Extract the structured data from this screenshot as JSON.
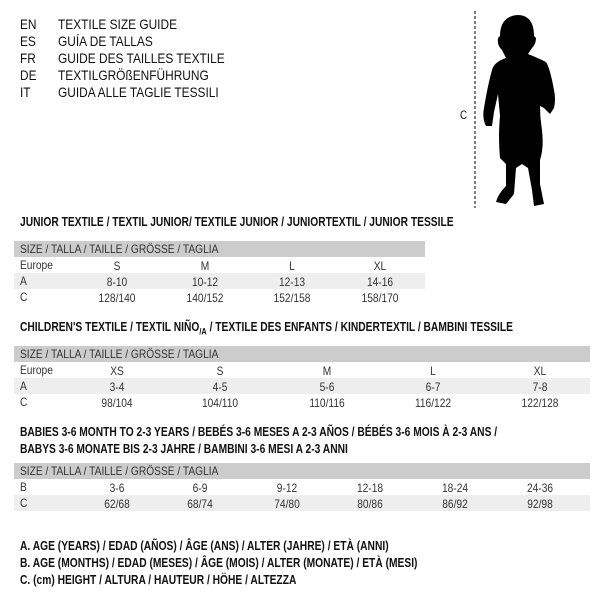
{
  "languages": [
    {
      "code": "EN",
      "title": "TEXTILE SIZE GUIDE"
    },
    {
      "code": "ES",
      "title": "GUÍA DE TALLAS"
    },
    {
      "code": "FR",
      "title": "GUIDE DES TAILLES TEXTILE"
    },
    {
      "code": "DE",
      "title": "TEXTILGRÖßENFÜHRUNG"
    },
    {
      "code": "IT",
      "title": "GUIDA ALLE TAGLIE TESSILI"
    }
  ],
  "figure": {
    "label": "C",
    "icon": "child-silhouette"
  },
  "size_header": "SIZE / TALLA / TAILLE / GRÖSSE / TAGLIA",
  "junior": {
    "title": "JUNIOR TEXTILE / TEXTIL JUNIOR/ TEXTILE JUNIOR / JUNIORTEXTIL / JUNIOR TESSILE",
    "rows": [
      {
        "label": "Europe",
        "values": [
          "S",
          "M",
          "L",
          "XL"
        ]
      },
      {
        "label": "A",
        "values": [
          "8-10",
          "10-12",
          "12-13",
          "14-16"
        ]
      },
      {
        "label": "C",
        "values": [
          "128/140",
          "140/152",
          "152/158",
          "158/170"
        ]
      }
    ]
  },
  "children": {
    "title": "CHILDREN'S TEXTILE / TEXTIL NIÑO",
    "title_sub": "/A",
    "title_rest": " / TEXTILE DES ENFANTS / KINDERTEXTIL / BAMBINI TESSILE",
    "rows": [
      {
        "label": "Europe",
        "values": [
          "XS",
          "S",
          "M",
          "L",
          "XL"
        ]
      },
      {
        "label": "A",
        "values": [
          "3-4",
          "4-5",
          "5-6",
          "6-7",
          "7-8"
        ]
      },
      {
        "label": "C",
        "values": [
          "98/104",
          "104/110",
          "110/116",
          "116/122",
          "122/128"
        ]
      }
    ]
  },
  "babies": {
    "title_line1": "BABIES 3-6 MONTH TO 2-3 YEARS / BEBÉS 3-6 MESES A 2-3 AÑOS / BÉBÉS 3-6 MOIS À 2-3 ANS /",
    "title_line2": "BABYS 3-6 MONATE BIS 2-3 JAHRE / BAMBINI 3-6 MESI A 2-3 ANNI",
    "rows": [
      {
        "label": "B",
        "values": [
          "3-6",
          "6-9",
          "9-12",
          "12-18",
          "18-24",
          "24-36"
        ]
      },
      {
        "label": "C",
        "values": [
          "62/68",
          "68/74",
          "74/80",
          "80/86",
          "86/92",
          "92/98"
        ]
      }
    ]
  },
  "legend": [
    "A. AGE (YEARS) / EDAD (AÑOS) / ÂGE (ANS) / ALTER (JAHRE) / ETÀ (ANNI)",
    "B. AGE (MONTHS) / EDAD (MESES) / ÂGE (MOIS) / ALTER (MONATE) / ETÀ (MESI)",
    "C. (cm) HEIGHT / ALTURA / HAUTEUR / HÖHE / ALTEZZA"
  ],
  "colors": {
    "header_bg": "#cccccc",
    "shade_bg": "#eeeeee"
  }
}
